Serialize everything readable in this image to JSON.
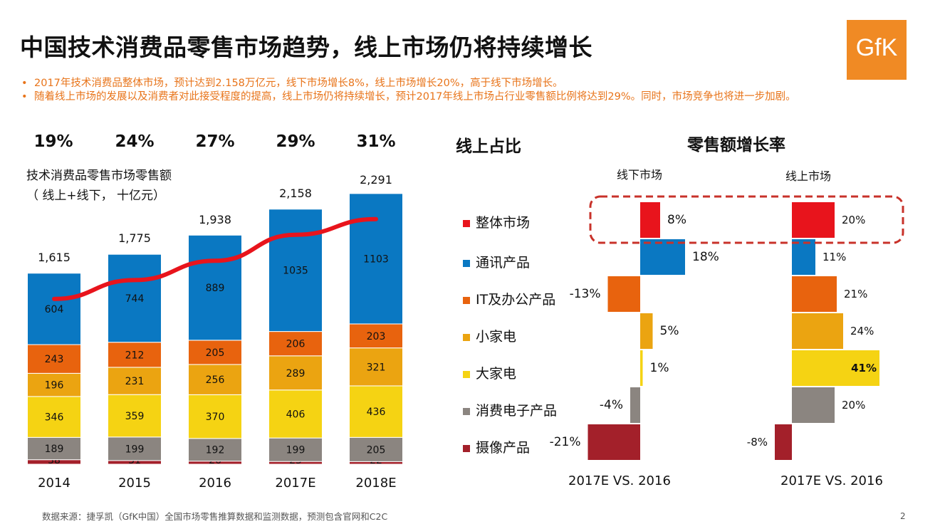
{
  "title": "中国技术消费品零售市场趋势，线上市场仍将持续增长",
  "logo_text": "GfK",
  "bullets": [
    "2017年技术消费品整体市场，预计达到2.158万亿元，线下市场增长8%，线上市场增长20%，高于线下市场增长。",
    "随着线上市场的发展以及消费者对此接受程度的提高，线上市场仍将持续增长，预计2017年线上市场占行业零售额比例将达到29%。同时，市场竞争也将进一步加剧。"
  ],
  "online_share_label": "线上占比",
  "growth_title": "零售额增长率",
  "colors": {
    "整体市场": "#e8141c",
    "通讯产品": "#0a78c2",
    "IT及办公产品": "#e8630e",
    "小家电": "#eba411",
    "大家电": "#f5d313",
    "消费电子产品": "#8b8580",
    "摄像产品": "#a3202a",
    "trend_line": "#e8141c",
    "highlight_box": "#c8322a"
  },
  "chart_data": [
    {
      "type": "bar",
      "stacked": true,
      "title": "技术消费品零售市场零售额",
      "subtitle": "（ 线上+线下， 十亿元）",
      "categories": [
        "2014",
        "2015",
        "2016",
        "2017E",
        "2018E"
      ],
      "series": [
        {
          "name": "摄像产品",
          "values": [
            38,
            31,
            26,
            23,
            22
          ]
        },
        {
          "name": "消费电子产品",
          "values": [
            189,
            199,
            192,
            199,
            205
          ]
        },
        {
          "name": "大家电",
          "values": [
            346,
            359,
            370,
            406,
            436
          ]
        },
        {
          "name": "小家电",
          "values": [
            196,
            231,
            256,
            289,
            321
          ]
        },
        {
          "name": "IT及办公产品",
          "values": [
            243,
            212,
            205,
            206,
            203
          ]
        },
        {
          "name": "通讯产品",
          "values": [
            604,
            744,
            889,
            1035,
            1103
          ]
        }
      ],
      "totals": [
        1615,
        1775,
        1938,
        2158,
        2291
      ],
      "totals_labels": [
        "1,615",
        "1,775",
        "1,938",
        "2,158",
        "2,291"
      ],
      "online_share": [
        "19%",
        "24%",
        "27%",
        "29%",
        "31%"
      ],
      "ylim": [
        0,
        2400
      ]
    },
    {
      "type": "bar",
      "orientation": "horizontal",
      "title": "零售额增长率",
      "categories": [
        "整体市场",
        "通讯产品",
        "IT及办公产品",
        "小家电",
        "大家电",
        "消费电子产品",
        "摄像产品"
      ],
      "series": [
        {
          "name": "线下市场",
          "xlabel": "2017E VS.  2016",
          "values": [
            8,
            18,
            -13,
            5,
            1,
            -4,
            -21
          ],
          "labels": [
            "8%",
            "18%",
            "-13%",
            "5%",
            "1%",
            "-4%",
            "-21%"
          ]
        },
        {
          "name": "线上市场",
          "xlabel": "2017E VS. 2016",
          "values": [
            20,
            11,
            21,
            24,
            41,
            20,
            -8
          ],
          "labels": [
            "20%",
            "11%",
            "21%",
            "24%",
            "41%",
            "20%",
            "-8%"
          ]
        }
      ],
      "highlight": "整体市场"
    }
  ],
  "source": "数据来源：捷孚凯（GfK中国）全国市场零售推算数据和监测数据，预测包含官网和C2C",
  "page_number": "2"
}
